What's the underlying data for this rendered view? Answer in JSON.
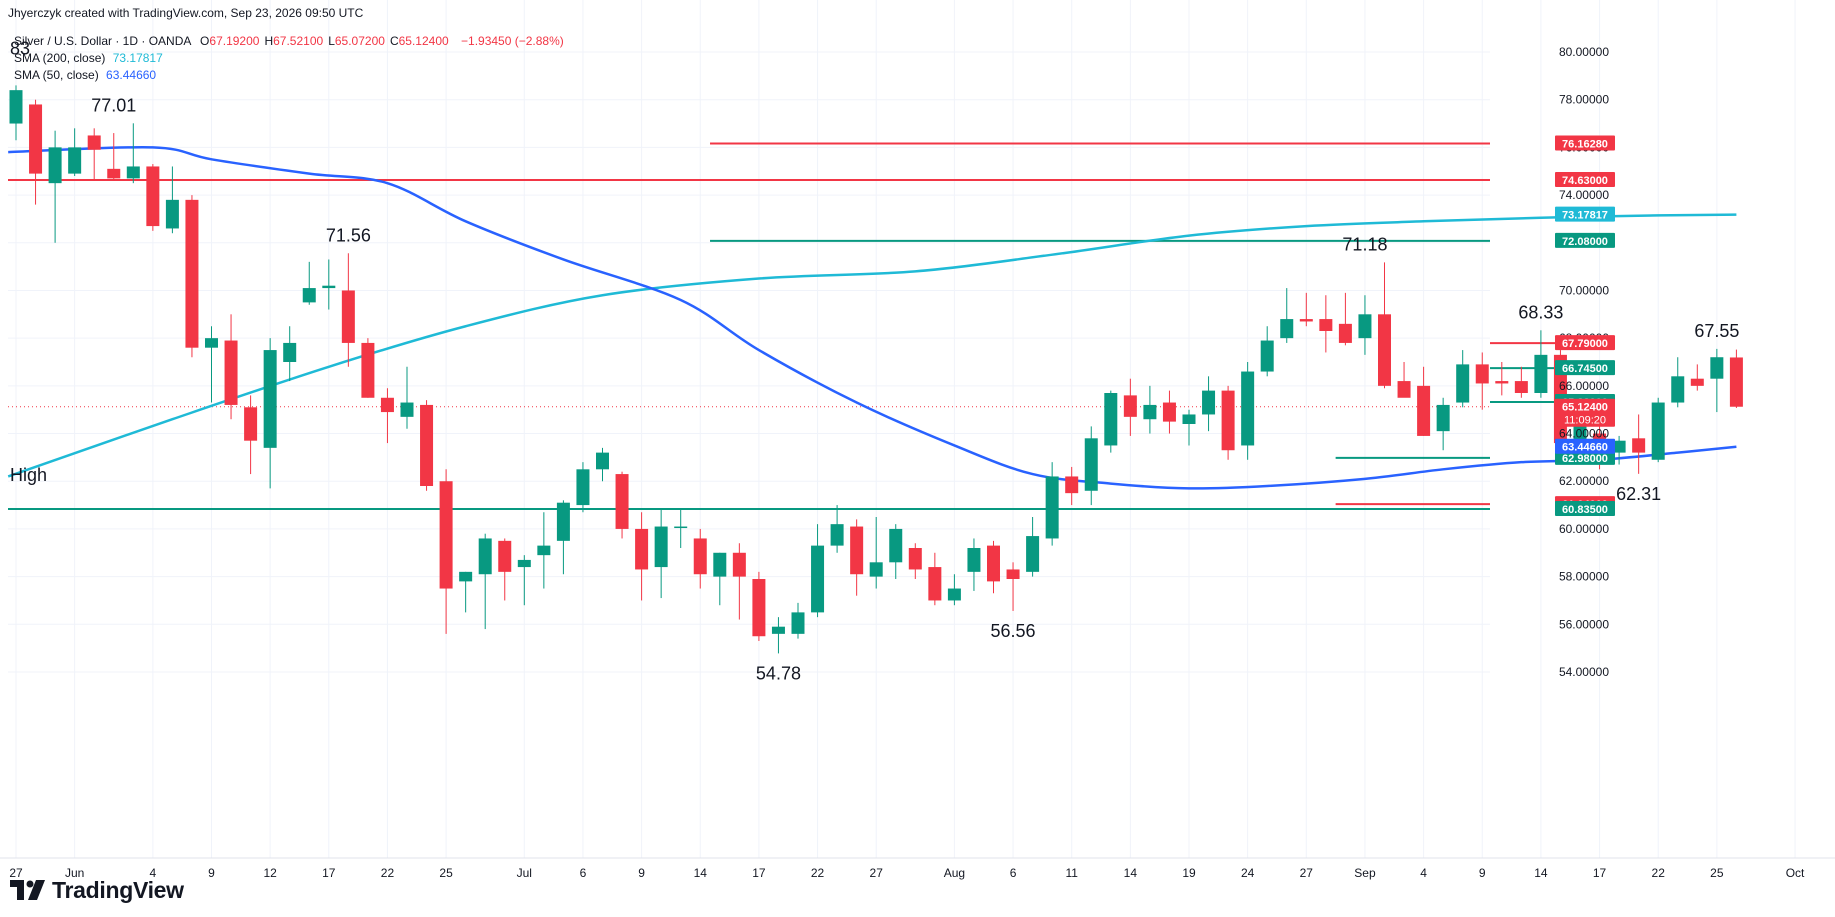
{
  "header": {
    "credit": "Jhyerczyk created with TradingView.com, Sep 23, 2026 09:50 UTC"
  },
  "legend": {
    "symbol": "Silver / U.S. Dollar · 1D · OANDA",
    "ohlc": [
      {
        "label": "O",
        "value": "67.19200"
      },
      {
        "label": "H",
        "value": "67.52100"
      },
      {
        "label": "L",
        "value": "65.07200"
      },
      {
        "label": "C",
        "value": "65.12400"
      }
    ],
    "change": "−1.93450 (−2.88%)",
    "sma200": {
      "label": "SMA (200, close)",
      "value": "73.17817",
      "color": "#1fbad6"
    },
    "sma50": {
      "label": "SMA (50, close)",
      "value": "63.44660",
      "color": "#2962ff"
    }
  },
  "branding": {
    "name": "TradingView"
  },
  "chart_data": {
    "type": "candlestick",
    "ylim": [
      53,
      81
    ],
    "y_ticks": [
      54,
      56,
      58,
      60,
      62,
      64,
      66,
      68,
      70,
      72,
      74,
      76,
      78,
      80
    ],
    "y_tick_labels": [
      "54.00000",
      "56.00000",
      "58.00000",
      "60.00000",
      "62.00000",
      "64.00000",
      "66.00000",
      "68.00000",
      "70.00000",
      "72.00000",
      "74.00000",
      "76.00000",
      "78.00000",
      "80.00000"
    ],
    "x_labels": [
      {
        "i": 0,
        "label": "27"
      },
      {
        "i": 3,
        "label": "Jun"
      },
      {
        "i": 7,
        "label": "4"
      },
      {
        "i": 10,
        "label": "9"
      },
      {
        "i": 13,
        "label": "12"
      },
      {
        "i": 16,
        "label": "17"
      },
      {
        "i": 19,
        "label": "22"
      },
      {
        "i": 22,
        "label": "25"
      },
      {
        "i": 26,
        "label": "Jul"
      },
      {
        "i": 29,
        "label": "6"
      },
      {
        "i": 32,
        "label": "9"
      },
      {
        "i": 35,
        "label": "14"
      },
      {
        "i": 38,
        "label": "17"
      },
      {
        "i": 41,
        "label": "22"
      },
      {
        "i": 44,
        "label": "27"
      },
      {
        "i": 48,
        "label": "Aug"
      },
      {
        "i": 51,
        "label": "6"
      },
      {
        "i": 54,
        "label": "11"
      },
      {
        "i": 57,
        "label": "14"
      },
      {
        "i": 60,
        "label": "19"
      },
      {
        "i": 63,
        "label": "24"
      },
      {
        "i": 66,
        "label": "27"
      },
      {
        "i": 69,
        "label": "Sep"
      },
      {
        "i": 72,
        "label": "4"
      },
      {
        "i": 75,
        "label": "9"
      },
      {
        "i": 78,
        "label": "14"
      },
      {
        "i": 81,
        "label": "17"
      },
      {
        "i": 84,
        "label": "22"
      },
      {
        "i": 87,
        "label": "25"
      },
      {
        "i": 91,
        "label": "Oct"
      }
    ],
    "candles": [
      {
        "o": 77.0,
        "h": 78.6,
        "l": 76.3,
        "c": 78.4
      },
      {
        "o": 77.8,
        "h": 78.0,
        "l": 73.6,
        "c": 74.9
      },
      {
        "o": 74.5,
        "h": 76.7,
        "l": 72.0,
        "c": 76.0
      },
      {
        "o": 74.9,
        "h": 76.8,
        "l": 74.8,
        "c": 76.0
      },
      {
        "o": 76.5,
        "h": 76.8,
        "l": 74.6,
        "c": 75.9
      },
      {
        "o": 75.1,
        "h": 76.6,
        "l": 74.6,
        "c": 74.7
      },
      {
        "o": 74.7,
        "h": 77.01,
        "l": 74.5,
        "c": 75.2
      },
      {
        "o": 75.2,
        "h": 75.3,
        "l": 72.5,
        "c": 72.7
      },
      {
        "o": 72.6,
        "h": 75.2,
        "l": 72.4,
        "c": 73.8
      },
      {
        "o": 73.8,
        "h": 74.0,
        "l": 67.2,
        "c": 67.6
      },
      {
        "o": 67.6,
        "h": 68.5,
        "l": 65.3,
        "c": 68.0
      },
      {
        "o": 67.9,
        "h": 69.0,
        "l": 64.6,
        "c": 65.2
      },
      {
        "o": 65.1,
        "h": 65.6,
        "l": 62.3,
        "c": 63.7
      },
      {
        "o": 63.4,
        "h": 68.0,
        "l": 61.7,
        "c": 67.5
      },
      {
        "o": 67.0,
        "h": 68.5,
        "l": 66.2,
        "c": 67.8
      },
      {
        "o": 69.5,
        "h": 71.2,
        "l": 69.4,
        "c": 70.1
      },
      {
        "o": 70.1,
        "h": 71.3,
        "l": 69.2,
        "c": 70.2
      },
      {
        "o": 70.0,
        "h": 71.56,
        "l": 66.8,
        "c": 67.8
      },
      {
        "o": 67.8,
        "h": 68.0,
        "l": 65.5,
        "c": 65.5
      },
      {
        "o": 65.5,
        "h": 65.9,
        "l": 63.6,
        "c": 64.9
      },
      {
        "o": 64.7,
        "h": 66.8,
        "l": 64.2,
        "c": 65.3
      },
      {
        "o": 65.2,
        "h": 65.4,
        "l": 61.6,
        "c": 61.8
      },
      {
        "o": 62.0,
        "h": 62.5,
        "l": 55.6,
        "c": 57.5
      },
      {
        "o": 57.8,
        "h": 58.2,
        "l": 56.5,
        "c": 58.2
      },
      {
        "o": 58.1,
        "h": 59.8,
        "l": 55.8,
        "c": 59.6
      },
      {
        "o": 59.5,
        "h": 59.6,
        "l": 57.0,
        "c": 58.2
      },
      {
        "o": 58.4,
        "h": 58.9,
        "l": 56.8,
        "c": 58.7
      },
      {
        "o": 58.9,
        "h": 60.7,
        "l": 57.5,
        "c": 59.3
      },
      {
        "o": 59.5,
        "h": 61.2,
        "l": 58.1,
        "c": 61.1
      },
      {
        "o": 61.0,
        "h": 62.8,
        "l": 60.7,
        "c": 62.5
      },
      {
        "o": 62.5,
        "h": 63.4,
        "l": 62.0,
        "c": 63.2
      },
      {
        "o": 62.3,
        "h": 62.4,
        "l": 59.6,
        "c": 60.0
      },
      {
        "o": 60.0,
        "h": 60.7,
        "l": 57.0,
        "c": 58.3
      },
      {
        "o": 58.4,
        "h": 60.8,
        "l": 57.1,
        "c": 60.1
      },
      {
        "o": 60.1,
        "h": 60.8,
        "l": 59.2,
        "c": 60.1
      },
      {
        "o": 59.6,
        "h": 60.0,
        "l": 57.5,
        "c": 58.1
      },
      {
        "o": 58.0,
        "h": 59.0,
        "l": 56.8,
        "c": 59.0
      },
      {
        "o": 59.0,
        "h": 59.4,
        "l": 56.2,
        "c": 58.0
      },
      {
        "o": 57.9,
        "h": 58.2,
        "l": 55.3,
        "c": 55.5
      },
      {
        "o": 55.6,
        "h": 56.3,
        "l": 54.78,
        "c": 55.9
      },
      {
        "o": 55.6,
        "h": 56.9,
        "l": 55.4,
        "c": 56.5
      },
      {
        "o": 56.5,
        "h": 60.2,
        "l": 56.3,
        "c": 59.3
      },
      {
        "o": 59.3,
        "h": 61.0,
        "l": 59.0,
        "c": 60.2
      },
      {
        "o": 60.1,
        "h": 60.4,
        "l": 57.2,
        "c": 58.1
      },
      {
        "o": 58.0,
        "h": 60.5,
        "l": 57.5,
        "c": 58.6
      },
      {
        "o": 58.6,
        "h": 60.2,
        "l": 57.9,
        "c": 60.0
      },
      {
        "o": 59.2,
        "h": 59.4,
        "l": 57.9,
        "c": 58.3
      },
      {
        "o": 58.4,
        "h": 59.0,
        "l": 56.8,
        "c": 57.0
      },
      {
        "o": 57.0,
        "h": 58.1,
        "l": 56.8,
        "c": 57.5
      },
      {
        "o": 58.2,
        "h": 59.6,
        "l": 57.4,
        "c": 59.2
      },
      {
        "o": 59.3,
        "h": 59.5,
        "l": 57.3,
        "c": 57.8
      },
      {
        "o": 58.3,
        "h": 58.6,
        "l": 56.56,
        "c": 57.9
      },
      {
        "o": 58.2,
        "h": 60.5,
        "l": 58.0,
        "c": 59.7
      },
      {
        "o": 59.6,
        "h": 62.8,
        "l": 59.3,
        "c": 62.2
      },
      {
        "o": 62.2,
        "h": 62.6,
        "l": 61.0,
        "c": 61.5
      },
      {
        "o": 61.6,
        "h": 64.3,
        "l": 61.0,
        "c": 63.8
      },
      {
        "o": 63.5,
        "h": 65.8,
        "l": 63.2,
        "c": 65.7
      },
      {
        "o": 65.6,
        "h": 66.3,
        "l": 63.9,
        "c": 64.7
      },
      {
        "o": 64.6,
        "h": 66.0,
        "l": 64.0,
        "c": 65.2
      },
      {
        "o": 65.3,
        "h": 65.8,
        "l": 64.0,
        "c": 64.5
      },
      {
        "o": 64.4,
        "h": 65.0,
        "l": 63.5,
        "c": 64.8
      },
      {
        "o": 64.8,
        "h": 66.4,
        "l": 64.1,
        "c": 65.8
      },
      {
        "o": 65.8,
        "h": 66.0,
        "l": 62.9,
        "c": 63.3
      },
      {
        "o": 63.5,
        "h": 67.0,
        "l": 62.9,
        "c": 66.6
      },
      {
        "o": 66.6,
        "h": 68.5,
        "l": 66.4,
        "c": 67.9
      },
      {
        "o": 68.0,
        "h": 70.1,
        "l": 67.8,
        "c": 68.8
      },
      {
        "o": 68.8,
        "h": 69.9,
        "l": 68.5,
        "c": 68.7
      },
      {
        "o": 68.8,
        "h": 69.8,
        "l": 67.4,
        "c": 68.3
      },
      {
        "o": 68.6,
        "h": 69.9,
        "l": 67.7,
        "c": 67.8
      },
      {
        "o": 68.0,
        "h": 69.8,
        "l": 67.3,
        "c": 69.0
      },
      {
        "o": 69.0,
        "h": 71.18,
        "l": 65.9,
        "c": 66.0
      },
      {
        "o": 66.2,
        "h": 67.0,
        "l": 65.7,
        "c": 65.5
      },
      {
        "o": 66.0,
        "h": 66.8,
        "l": 63.9,
        "c": 63.9
      },
      {
        "o": 64.1,
        "h": 65.5,
        "l": 63.3,
        "c": 65.2
      },
      {
        "o": 65.3,
        "h": 67.5,
        "l": 65.1,
        "c": 66.9
      },
      {
        "o": 66.9,
        "h": 67.4,
        "l": 65.0,
        "c": 66.1
      },
      {
        "o": 66.2,
        "h": 67.0,
        "l": 65.6,
        "c": 66.1
      },
      {
        "o": 66.2,
        "h": 66.8,
        "l": 65.5,
        "c": 65.7
      },
      {
        "o": 65.7,
        "h": 68.33,
        "l": 65.5,
        "c": 67.3
      },
      {
        "o": 67.3,
        "h": 67.5,
        "l": 63.5,
        "c": 63.6
      },
      {
        "o": 63.6,
        "h": 64.8,
        "l": 63.0,
        "c": 64.5
      },
      {
        "o": 64.0,
        "h": 64.5,
        "l": 62.5,
        "c": 63.2
      },
      {
        "o": 63.2,
        "h": 63.9,
        "l": 62.7,
        "c": 63.7
      },
      {
        "o": 63.8,
        "h": 64.8,
        "l": 62.31,
        "c": 63.2
      },
      {
        "o": 62.9,
        "h": 65.5,
        "l": 62.8,
        "c": 65.3
      },
      {
        "o": 65.3,
        "h": 67.2,
        "l": 65.1,
        "c": 66.4
      },
      {
        "o": 66.3,
        "h": 66.9,
        "l": 65.8,
        "c": 66.0
      },
      {
        "o": 66.3,
        "h": 67.55,
        "l": 64.9,
        "c": 67.2
      },
      {
        "o": 67.19,
        "h": 67.521,
        "l": 65.072,
        "c": 65.124
      }
    ],
    "sma200": [
      {
        "i": 0,
        "v": 62.2
      },
      {
        "i": 8,
        "v": 64.6
      },
      {
        "i": 16,
        "v": 66.8
      },
      {
        "i": 23,
        "v": 68.5
      },
      {
        "i": 30,
        "v": 69.8
      },
      {
        "i": 38,
        "v": 70.5
      },
      {
        "i": 46,
        "v": 70.8
      },
      {
        "i": 53,
        "v": 71.5
      },
      {
        "i": 60,
        "v": 72.3
      },
      {
        "i": 66,
        "v": 72.7
      },
      {
        "i": 72,
        "v": 72.9
      },
      {
        "i": 78,
        "v": 73.05
      },
      {
        "i": 84,
        "v": 73.15
      },
      {
        "i": 88,
        "v": 73.178
      }
    ],
    "sma50": [
      {
        "i": 0,
        "v": 75.8
      },
      {
        "i": 7,
        "v": 76.0
      },
      {
        "i": 10,
        "v": 75.5
      },
      {
        "i": 15,
        "v": 74.9
      },
      {
        "i": 19,
        "v": 74.5
      },
      {
        "i": 23,
        "v": 72.9
      },
      {
        "i": 28,
        "v": 71.3
      },
      {
        "i": 34,
        "v": 69.6
      },
      {
        "i": 38,
        "v": 67.5
      },
      {
        "i": 43,
        "v": 65.3
      },
      {
        "i": 48,
        "v": 63.5
      },
      {
        "i": 52,
        "v": 62.3
      },
      {
        "i": 56,
        "v": 61.9
      },
      {
        "i": 60,
        "v": 61.7
      },
      {
        "i": 64,
        "v": 61.8
      },
      {
        "i": 69,
        "v": 62.1
      },
      {
        "i": 73,
        "v": 62.5
      },
      {
        "i": 77,
        "v": 62.8
      },
      {
        "i": 81,
        "v": 62.9
      },
      {
        "i": 85,
        "v": 63.2
      },
      {
        "i": 88,
        "v": 63.4466
      }
    ],
    "levels": [
      {
        "value": 76.1628,
        "label": "76.16280",
        "color": "#f23645",
        "x_from": 35.5
      },
      {
        "value": 74.63,
        "label": "74.63000",
        "color": "#f23645",
        "x_from": -0.5
      },
      {
        "value": 72.08,
        "label": "72.08000",
        "color": "#089981",
        "x_from": 35.5
      },
      {
        "value": 67.79,
        "label": "67.79000",
        "color": "#f23645",
        "x_from": 79.5
      },
      {
        "value": 66.745,
        "label": "66.74500",
        "color": "#089981",
        "x_from": 79.5
      },
      {
        "value": 65.32,
        "label": "65.32000",
        "color": "#089981",
        "x_from": 79.5
      },
      {
        "value": 62.98,
        "label": "62.98000",
        "color": "#089981",
        "x_from": 67.5
      },
      {
        "value": 61.04,
        "label": "61.04000",
        "color": "#f23645",
        "x_from": 67.5
      },
      {
        "value": 60.835,
        "label": "60.83500",
        "color": "#089981",
        "x_from": -0.5
      }
    ],
    "price_tags": [
      {
        "value": 73.17817,
        "label": "73.17817",
        "color": "#1fbad6"
      },
      {
        "value": 65.124,
        "label": "65.12400",
        "sub": "11:09:20",
        "color": "#f23645"
      },
      {
        "value": 63.4466,
        "label": "63.44660",
        "color": "#2962ff"
      }
    ],
    "annotations": [
      {
        "i": 5,
        "v": 77.01,
        "text": "77.01",
        "pos": "above"
      },
      {
        "i": 17,
        "v": 71.56,
        "text": "71.56",
        "pos": "above"
      },
      {
        "i": 39,
        "v": 54.78,
        "text": "54.78",
        "pos": "below"
      },
      {
        "i": 51,
        "v": 56.56,
        "text": "56.56",
        "pos": "below"
      },
      {
        "i": 69,
        "v": 71.18,
        "text": "71.18",
        "pos": "above"
      },
      {
        "i": 78,
        "v": 68.33,
        "text": "68.33",
        "pos": "above"
      },
      {
        "i": 83,
        "v": 62.31,
        "text": "62.31",
        "pos": "below"
      },
      {
        "i": 87,
        "v": 67.55,
        "text": "67.55",
        "pos": "above"
      }
    ],
    "side_labels": [
      {
        "text": "83",
        "v": 79.9
      },
      {
        "text": "High",
        "v": 62.0
      }
    ],
    "colors": {
      "up": "#089981",
      "down": "#f23645",
      "grid": "#f0f3fa",
      "axis_text": "#131722"
    }
  }
}
